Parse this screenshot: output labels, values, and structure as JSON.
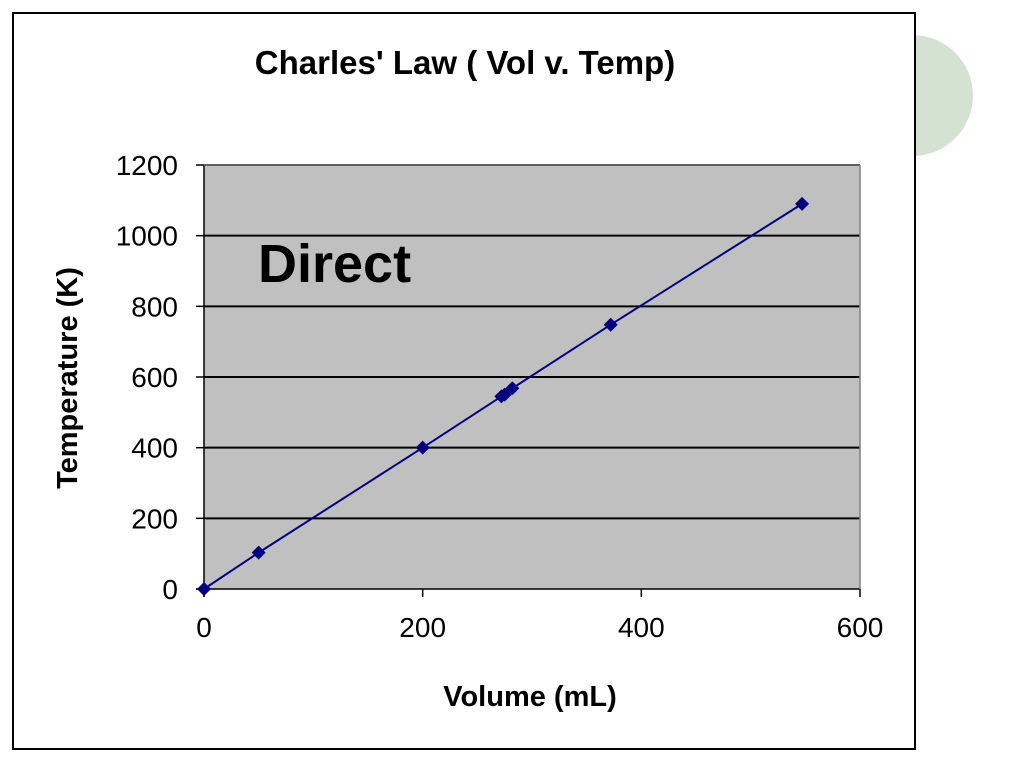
{
  "chart_data": {
    "type": "scatter",
    "title": "Charles' Law ( Vol v. Temp)",
    "xlabel": "Volume (mL)",
    "ylabel": "Temperature (K)",
    "xlim": [
      0,
      600
    ],
    "ylim": [
      0,
      1200
    ],
    "x_ticks": [
      "0",
      "200",
      "400",
      "600"
    ],
    "y_ticks": [
      "0",
      "200",
      "400",
      "600",
      "800",
      "1000",
      "1200"
    ],
    "grid": "horizontal",
    "legend": "none",
    "annotation": "Direct",
    "series": [
      {
        "x": [
          0,
          50,
          200,
          272,
          275,
          282,
          372,
          547
        ],
        "y": [
          0,
          103,
          400,
          545,
          550,
          568,
          748,
          1090
        ],
        "color": "#000080",
        "marker": "diamond",
        "connected": true
      }
    ],
    "plot_background": "#c0c0c0"
  }
}
